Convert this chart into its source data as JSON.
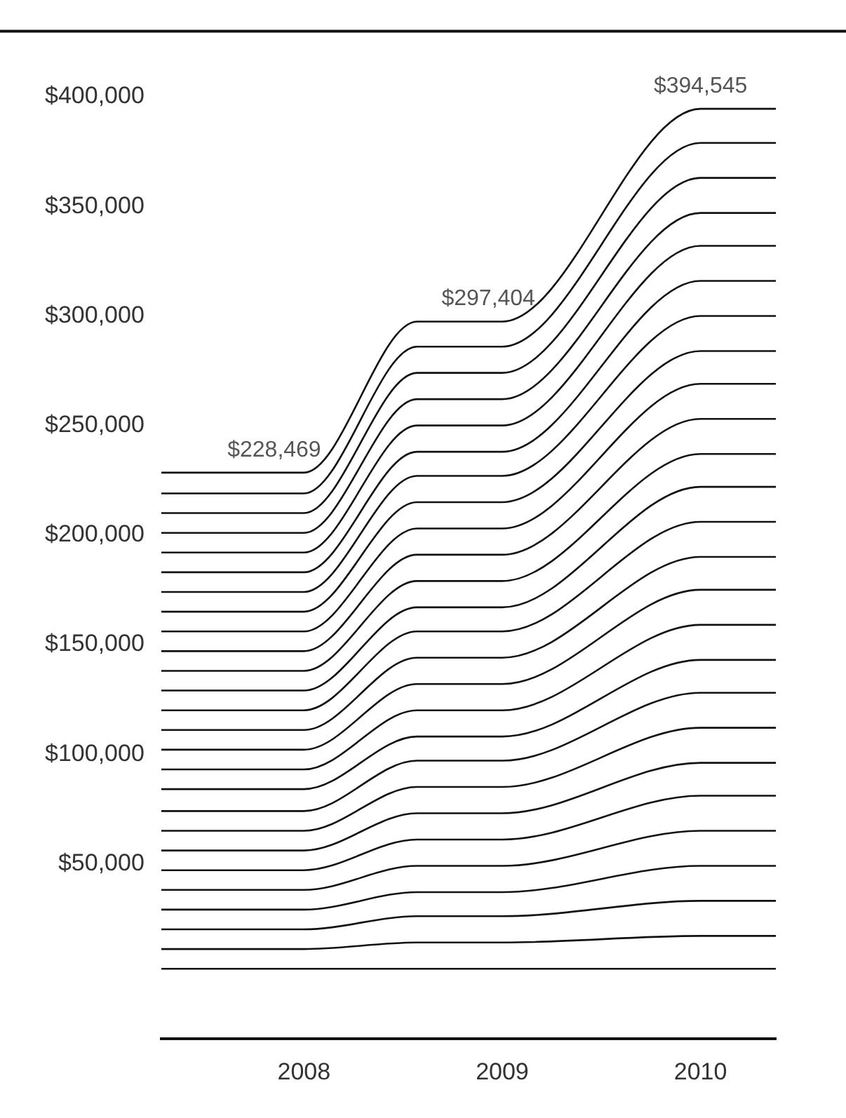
{
  "chart_data": {
    "type": "line",
    "x": [
      2007.28,
      2008,
      2008.57,
      2009,
      2010,
      2010.38
    ],
    "xlim": [
      2007.28,
      2010.38
    ],
    "xticks": [
      2008,
      2009,
      2010
    ],
    "ylim": [
      -30000,
      430000
    ],
    "yticks": [
      {
        "value": 50000,
        "label": "$50,000"
      },
      {
        "value": 100000,
        "label": "$100,000"
      },
      {
        "value": 150000,
        "label": "$150,000"
      },
      {
        "value": 200000,
        "label": "$200,000"
      },
      {
        "value": 250000,
        "label": "$250,000"
      },
      {
        "value": 300000,
        "label": "$300,000"
      },
      {
        "value": 350000,
        "label": "$350,000"
      },
      {
        "value": 400000,
        "label": "$400,000"
      }
    ],
    "annotations": [
      {
        "text": "$228,469",
        "x": 2007.85,
        "y": 228469
      },
      {
        "text": "$297,404",
        "x": 2008.93,
        "y": 297404
      },
      {
        "text": "$394,545",
        "x": 2010,
        "y": 394545
      }
    ],
    "series": [
      {
        "color": "#111111",
        "values": [
          2000,
          2000,
          2000,
          2000,
          2000,
          2000
        ]
      },
      {
        "color": "#111111",
        "values": [
          11000,
          11000,
          14000,
          14000,
          17000,
          17000
        ]
      },
      {
        "color": "#111111",
        "values": [
          20000,
          20000,
          26000,
          26000,
          33000,
          33000
        ]
      },
      {
        "color": "#111111",
        "values": [
          29000,
          29000,
          37000,
          37000,
          49000,
          49000
        ]
      },
      {
        "color": "#111111",
        "values": [
          38000,
          38000,
          49000,
          49000,
          65000,
          65000
        ]
      },
      {
        "color": "#111111",
        "values": [
          47000,
          47000,
          61000,
          61000,
          81000,
          81000
        ]
      },
      {
        "color": "#111111",
        "values": [
          56000,
          56000,
          73000,
          73000,
          96000,
          96000
        ]
      },
      {
        "color": "#111111",
        "values": [
          65000,
          65000,
          85000,
          85000,
          112000,
          112000
        ]
      },
      {
        "color": "#111111",
        "values": [
          74000,
          74000,
          97000,
          97000,
          128000,
          128000
        ]
      },
      {
        "color": "#111111",
        "values": [
          84000,
          84000,
          108000,
          108000,
          143000,
          143000
        ]
      },
      {
        "color": "#111111",
        "values": [
          93000,
          93000,
          120000,
          120000,
          159000,
          159000
        ]
      },
      {
        "color": "#111111",
        "values": [
          102000,
          102000,
          132000,
          132000,
          175000,
          175000
        ]
      },
      {
        "color": "#111111",
        "values": [
          111000,
          111000,
          144000,
          144000,
          190000,
          190000
        ]
      },
      {
        "color": "#111111",
        "values": [
          120000,
          120000,
          156000,
          156000,
          206000,
          206000
        ]
      },
      {
        "color": "#111111",
        "values": [
          129000,
          129000,
          167000,
          167000,
          222000,
          222000
        ]
      },
      {
        "color": "#111111",
        "values": [
          138000,
          138000,
          179000,
          179000,
          237000,
          237000
        ]
      },
      {
        "color": "#111111",
        "values": [
          147000,
          147000,
          191000,
          191000,
          253000,
          253000
        ]
      },
      {
        "color": "#111111",
        "values": [
          156000,
          156000,
          203000,
          203000,
          269000,
          269000
        ]
      },
      {
        "color": "#111111",
        "values": [
          165000,
          165000,
          215000,
          215000,
          284000,
          284000
        ]
      },
      {
        "color": "#111111",
        "values": [
          174000,
          174000,
          227000,
          227000,
          300000,
          300000
        ]
      },
      {
        "color": "#111111",
        "values": [
          183000,
          183000,
          238000,
          238000,
          316000,
          316000
        ]
      },
      {
        "color": "#111111",
        "values": [
          192000,
          192000,
          250000,
          250000,
          332000,
          332000
        ]
      },
      {
        "color": "#111111",
        "values": [
          201000,
          201000,
          262000,
          262000,
          347000,
          347000
        ]
      },
      {
        "color": "#111111",
        "values": [
          210000,
          210000,
          274000,
          274000,
          363000,
          363000
        ]
      },
      {
        "color": "#111111",
        "values": [
          219000,
          219000,
          286000,
          286000,
          379000,
          379000
        ]
      },
      {
        "color": "#111111",
        "values": [
          228469,
          228469,
          297404,
          297404,
          394545,
          394545
        ]
      }
    ]
  }
}
